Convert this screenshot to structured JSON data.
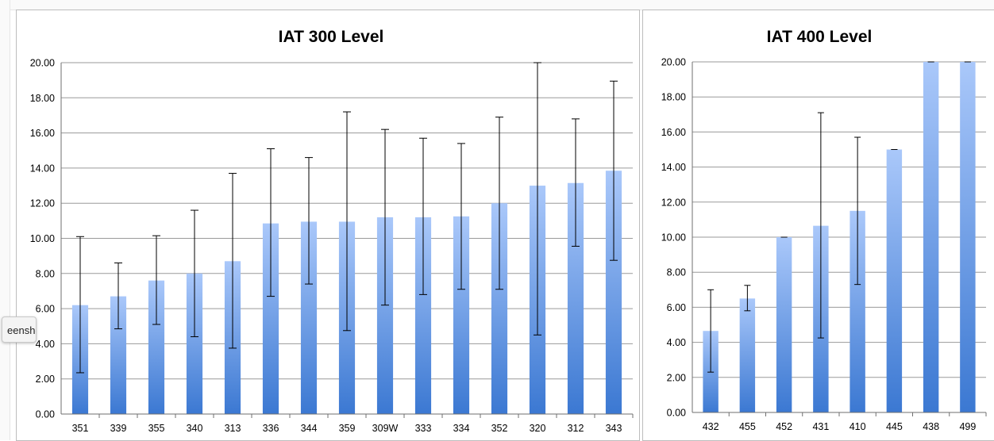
{
  "tooltip": {
    "text": "eenshot"
  },
  "chart_data": [
    {
      "type": "bar",
      "title": "IAT 300 Level",
      "xlabel": "",
      "ylabel": "",
      "ylim": [
        0,
        20
      ],
      "yticks": [
        "0.00",
        "2.00",
        "4.00",
        "6.00",
        "8.00",
        "10.00",
        "12.00",
        "14.00",
        "16.00",
        "18.00",
        "20.00"
      ],
      "grid": true,
      "legend": "none",
      "categories": [
        "351",
        "339",
        "355",
        "340",
        "313",
        "336",
        "344",
        "359",
        "309W",
        "333",
        "334",
        "352",
        "320",
        "312",
        "343"
      ],
      "values": [
        6.2,
        6.7,
        7.6,
        8.0,
        8.7,
        10.85,
        10.95,
        10.95,
        11.2,
        11.2,
        11.25,
        12.0,
        13.0,
        13.15,
        13.85
      ],
      "error_high": [
        10.1,
        8.6,
        10.15,
        11.6,
        13.7,
        15.1,
        14.6,
        17.2,
        16.2,
        15.7,
        15.4,
        16.9,
        20.0,
        16.8,
        18.95
      ],
      "error_low": [
        2.35,
        4.85,
        5.1,
        4.4,
        3.75,
        6.7,
        7.4,
        4.75,
        6.2,
        6.8,
        7.1,
        7.1,
        4.5,
        9.55,
        8.75
      ],
      "colors": {
        "bar_top": "#aac8fa",
        "bar_bottom": "#3b78d2",
        "grid": "#9a9a9a"
      }
    },
    {
      "type": "bar",
      "title": "IAT 400 Level",
      "xlabel": "",
      "ylabel": "",
      "ylim": [
        0,
        20
      ],
      "yticks": [
        "0.00",
        "2.00",
        "4.00",
        "6.00",
        "8.00",
        "10.00",
        "12.00",
        "14.00",
        "16.00",
        "18.00",
        "20.00"
      ],
      "grid": true,
      "legend": "none",
      "categories": [
        "432",
        "455",
        "452",
        "431",
        "410",
        "445",
        "438",
        "499"
      ],
      "values": [
        4.65,
        6.5,
        10.0,
        10.65,
        11.5,
        15.0,
        20.0,
        20.0
      ],
      "error_high": [
        7.0,
        7.25,
        10.0,
        17.1,
        15.7,
        15.0,
        20.0,
        20.0
      ],
      "error_low": [
        2.3,
        5.8,
        10.0,
        4.25,
        7.3,
        15.0,
        20.0,
        20.0
      ],
      "colors": {
        "bar_top": "#aac8fa",
        "bar_bottom": "#3b78d2",
        "grid": "#9a9a9a"
      }
    }
  ]
}
